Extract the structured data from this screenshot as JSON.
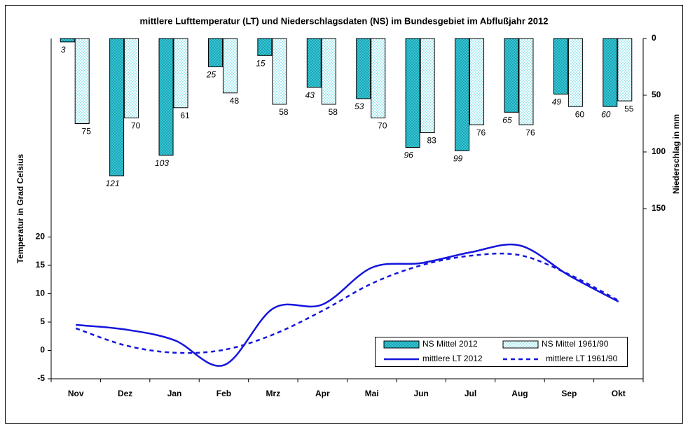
{
  "chart_data": {
    "type": "combo",
    "title": "mittlere Lufttemperatur (LT) und Niederschlagsdaten (NS) im Bundesgebiet im Abflußjahr 2012",
    "y_label": "Temperatur in Grad Celsius",
    "y2_label": "Niederschlag in mm",
    "categories": [
      "Nov",
      "Dez",
      "Jan",
      "Feb",
      "Mrz",
      "Apr",
      "Mai",
      "Jun",
      "Jul",
      "Aug",
      "Sep",
      "Okt"
    ],
    "ylim": [
      -5,
      55
    ],
    "yticks": [
      -5,
      0,
      5,
      10,
      15,
      20
    ],
    "y2lim": [
      0,
      300
    ],
    "y2_reversed": true,
    "y2ticks": [
      0,
      50,
      100,
      150
    ],
    "series": [
      {
        "name": "NS Mittel 2012",
        "type": "bar",
        "axis": "y2",
        "color": "#33ccdd",
        "pattern": "crosshatch",
        "label_style": "italic",
        "values": [
          3,
          121,
          103,
          25,
          15,
          43,
          53,
          96,
          99,
          65,
          49,
          60
        ]
      },
      {
        "name": "NS Mittel 1961/90",
        "type": "bar",
        "axis": "y2",
        "color": "#99eef5",
        "pattern": "dots",
        "label_style": "normal",
        "values": [
          75,
          70,
          61,
          48,
          58,
          58,
          70,
          83,
          76,
          76,
          60,
          55
        ]
      },
      {
        "name": "mittlere LT 2012",
        "type": "line",
        "color": "#1515dd",
        "dash": false,
        "values": [
          4.5,
          3.7,
          1.8,
          -2.6,
          7.4,
          8.1,
          14.6,
          15.4,
          17.3,
          18.5,
          13.2,
          8.6
        ]
      },
      {
        "name": "mittlere LT 1961/90",
        "type": "line",
        "color": "#1515dd",
        "dash": true,
        "values": [
          3.9,
          0.9,
          -0.4,
          0.1,
          2.8,
          7.0,
          11.8,
          15.0,
          16.7,
          16.8,
          13.4,
          8.8
        ]
      }
    ]
  }
}
